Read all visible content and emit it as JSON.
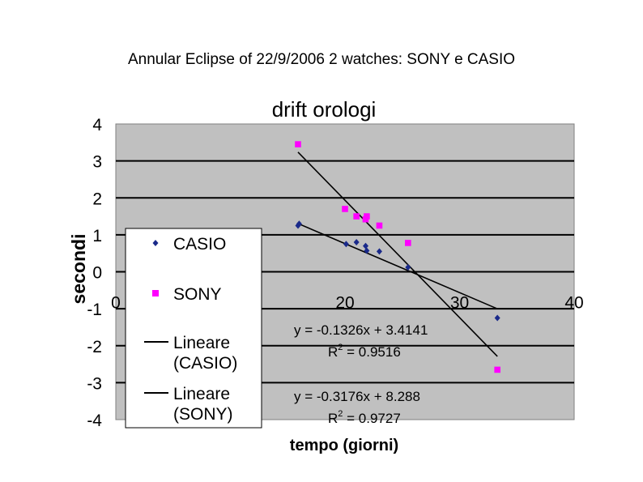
{
  "slide_title": "Annular Eclipse of 22/9/2006 2 watches: SONY e CASIO",
  "colors": {
    "casio": "#1a2a8a",
    "sony": "#ff00ff",
    "plot_bg": "#c0c0c0",
    "grid": "#000000",
    "trendline": "#000000"
  },
  "chart_data": {
    "type": "scatter",
    "title": "drift orologi",
    "xlabel": "tempo (giorni)",
    "ylabel": "secondi",
    "xlim": [
      0,
      40
    ],
    "ylim": [
      -4,
      4
    ],
    "x_ticks": [
      "0",
      "20",
      "30",
      "40"
    ],
    "y_ticks": [
      "4",
      "3",
      "2",
      "1",
      "0",
      "-1",
      "-2",
      "-3",
      "-4"
    ],
    "grid": true,
    "legend_position": "left",
    "series": [
      {
        "name": "CASIO",
        "marker": "diamond",
        "color": "#1a2a8a",
        "points": [
          [
            15.9,
            1.25
          ],
          [
            16.0,
            1.3
          ],
          [
            20.1,
            0.75
          ],
          [
            21.0,
            0.8
          ],
          [
            21.8,
            0.7
          ],
          [
            21.9,
            0.57
          ],
          [
            23.0,
            0.55
          ],
          [
            25.5,
            0.12
          ],
          [
            33.3,
            -1.25
          ]
        ]
      },
      {
        "name": "SONY",
        "marker": "square",
        "color": "#ff00ff",
        "points": [
          [
            15.9,
            3.45
          ],
          [
            20.0,
            1.7
          ],
          [
            21.0,
            1.5
          ],
          [
            21.8,
            1.42
          ],
          [
            21.9,
            1.5
          ],
          [
            23.0,
            1.25
          ],
          [
            25.5,
            0.78
          ],
          [
            33.3,
            -2.65
          ]
        ]
      }
    ],
    "trendlines": [
      {
        "name": "Lineare (CASIO)",
        "slope": -0.1326,
        "intercept": 3.4141,
        "x_range": [
          15.9,
          33.3
        ],
        "equation": "y = -0.1326x + 3.4141",
        "r2_label": "R",
        "r2_sup": "2",
        "r2_value": " = 0.9516"
      },
      {
        "name": "Lineare (SONY)",
        "slope": -0.3176,
        "intercept": 8.288,
        "x_range": [
          15.9,
          33.3
        ],
        "equation": "y = -0.3176x + 8.288",
        "r2_label": "R",
        "r2_sup": "2",
        "r2_value": " = 0.9727"
      }
    ],
    "legend": [
      {
        "label_lines": [
          "CASIO"
        ],
        "symbol": "diamond"
      },
      {
        "label_lines": [
          "SONY"
        ],
        "symbol": "square"
      },
      {
        "label_lines": [
          "Lineare",
          "(CASIO)"
        ],
        "symbol": "line"
      },
      {
        "label_lines": [
          "Lineare",
          "(SONY)"
        ],
        "symbol": "line"
      }
    ]
  }
}
